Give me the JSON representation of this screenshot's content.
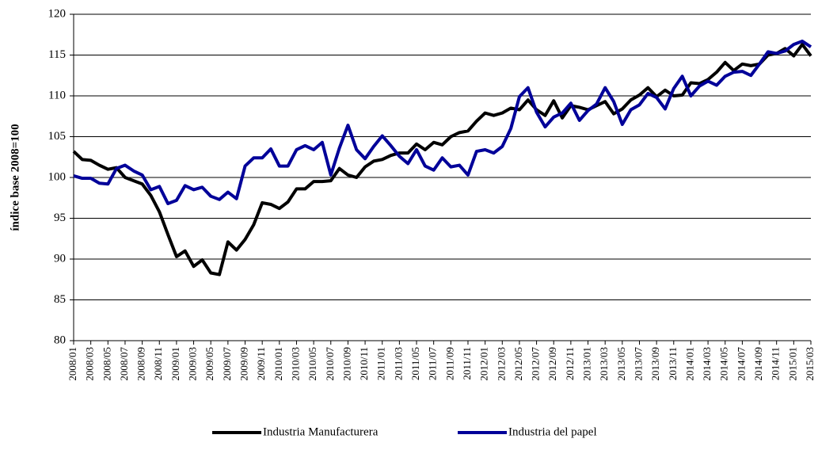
{
  "chart_data": {
    "type": "line",
    "y_label": "índice base 2008=100",
    "categories": [
      "2008/01",
      null,
      "2008/03",
      null,
      "2008/05",
      null,
      "2008/07",
      null,
      "2008/09",
      null,
      "2008/11",
      null,
      "2009/01",
      null,
      "2009/03",
      null,
      "2009/05",
      null,
      "2009/07",
      null,
      "2009/09",
      null,
      "2009/11",
      null,
      "2010/01",
      null,
      "2010/03",
      null,
      "2010/05",
      null,
      "2010/07",
      null,
      "2010/09",
      null,
      "2010/11",
      null,
      "2011/01",
      null,
      "2011/03",
      null,
      "2011/05",
      null,
      "2011/07",
      null,
      "2011/09",
      null,
      "2011/11",
      null,
      "2012/01",
      null,
      "2012/03",
      null,
      "2012/05",
      null,
      "2012/07",
      null,
      "2012/09",
      null,
      "2012/11",
      null,
      "2013/01",
      null,
      "2013/03",
      null,
      "2013/05",
      null,
      "2013/07",
      null,
      "2013/09",
      null,
      "2013/11",
      null,
      "2014/01",
      null,
      "2014/03",
      null,
      "2014/05",
      null,
      "2014/07",
      null,
      "2014/09",
      null,
      "2014/11",
      null,
      "2015/01",
      null,
      "2015/03"
    ],
    "series": [
      {
        "name": "Industria Manufacturera",
        "color": "#000000",
        "values": [
          103.2,
          102.2,
          102.1,
          101.5,
          101.0,
          101.2,
          100.0,
          99.6,
          99.2,
          97.8,
          95.8,
          93.0,
          90.3,
          91.0,
          89.1,
          89.9,
          88.3,
          88.1,
          92.1,
          91.1,
          92.4,
          94.2,
          96.9,
          96.7,
          96.2,
          97.0,
          98.6,
          98.6,
          99.5,
          99.5,
          99.6,
          101.1,
          100.3,
          100.0,
          101.3,
          102.0,
          102.2,
          102.7,
          103.0,
          103.0,
          104.1,
          103.4,
          104.3,
          104.0,
          105.0,
          105.5,
          105.7,
          106.9,
          107.9,
          107.6,
          107.9,
          108.5,
          108.3,
          109.5,
          108.3,
          107.6,
          109.4,
          107.3,
          108.8,
          108.6,
          108.3,
          108.8,
          109.3,
          107.8,
          108.4,
          109.5,
          110.1,
          111.0,
          109.9,
          110.7,
          110.0,
          110.1,
          111.6,
          111.5,
          112.0,
          112.9,
          114.1,
          113.1,
          113.9,
          113.7,
          113.9,
          115.0,
          115.2,
          115.8,
          114.9,
          116.3,
          114.9
        ]
      },
      {
        "name": "Industria del papel",
        "color": "#000099",
        "values": [
          100.2,
          99.9,
          99.9,
          99.3,
          99.2,
          101.1,
          101.5,
          100.8,
          100.3,
          98.5,
          98.9,
          96.8,
          97.2,
          99.0,
          98.5,
          98.8,
          97.7,
          97.3,
          98.2,
          97.4,
          101.4,
          102.4,
          102.4,
          103.5,
          101.4,
          101.4,
          103.4,
          103.9,
          103.4,
          104.3,
          100.3,
          103.6,
          106.4,
          103.4,
          102.3,
          103.8,
          105.1,
          103.9,
          102.6,
          101.7,
          103.4,
          101.4,
          100.9,
          102.4,
          101.3,
          101.5,
          100.3,
          103.2,
          103.4,
          103.0,
          103.8,
          106.0,
          109.9,
          111.0,
          108.0,
          106.2,
          107.4,
          107.9,
          109.1,
          107.0,
          108.2,
          109.0,
          111.0,
          109.3,
          106.5,
          108.3,
          108.9,
          110.3,
          109.8,
          108.4,
          110.9,
          112.4,
          110.0,
          111.2,
          111.8,
          111.3,
          112.4,
          112.9,
          113.0,
          112.5,
          113.9,
          115.4,
          115.2,
          115.5,
          116.3,
          116.7,
          116.0
        ]
      }
    ],
    "ylim": [
      80,
      120
    ],
    "yticks": [
      80,
      85,
      90,
      95,
      100,
      105,
      110,
      115,
      120
    ],
    "grid": true,
    "legend": "bottom"
  }
}
